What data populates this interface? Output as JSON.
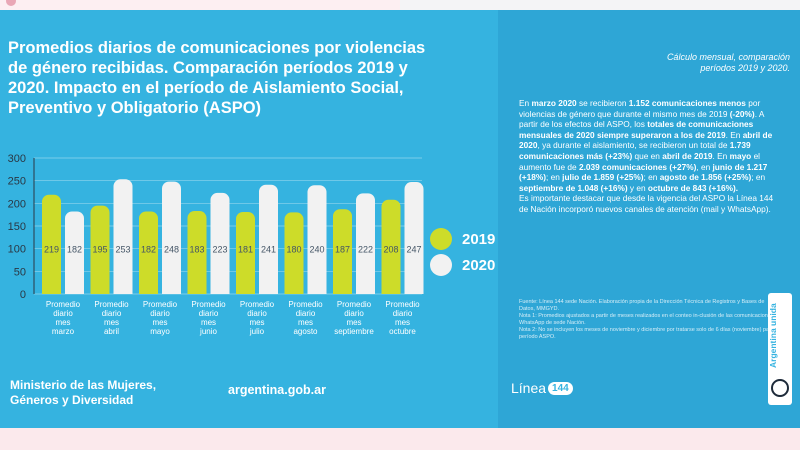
{
  "colors": {
    "background": "#35b3e0",
    "series_2019": "#cddc29",
    "series_2020": "#f2f2f2",
    "text": "#ffffff",
    "axis": "#2a3744"
  },
  "title": "Promedios diarios de comunicaciones por violencias de género recibidas. Comparación períodos 2019 y 2020. Impacto en el período de Aislamiento Social, Preventivo y Obligatorio (ASPO)",
  "calc_note": "Cálculo mensual, comparación períodos 2019 y 2020.",
  "summary": {
    "p1": [
      {
        "t": "En ",
        "b": false
      },
      {
        "t": "marzo 2020",
        "b": true
      },
      {
        "t": " se recibieron ",
        "b": false
      },
      {
        "t": "1.152 comunicaciones menos",
        "b": true
      },
      {
        "t": " por violencias de género que durante el mismo mes de 2019 ",
        "b": false
      },
      {
        "t": "(-20%)",
        "b": true
      },
      {
        "t": ". A partir de los efectos del ASPO, los ",
        "b": false
      },
      {
        "t": "totales de comunicaciones mensuales de 2020 siempre superaron a los de 2019",
        "b": true
      },
      {
        "t": ". En ",
        "b": false
      },
      {
        "t": "abril de 2020",
        "b": true
      },
      {
        "t": ", ya durante el aislamiento, se recibieron un total de ",
        "b": false
      },
      {
        "t": "1.739 comunicaciones más (+23%)",
        "b": true
      },
      {
        "t": " que en ",
        "b": false
      },
      {
        "t": "abril de 2019",
        "b": true
      },
      {
        "t": ". En ",
        "b": false
      },
      {
        "t": "mayo",
        "b": true
      },
      {
        "t": " el aumento fue de ",
        "b": false
      },
      {
        "t": "2.039 comunicaciones (+27%)",
        "b": true
      },
      {
        "t": ", en ",
        "b": false
      },
      {
        "t": "junio de 1.217 (+18%)",
        "b": true
      },
      {
        "t": "; en ",
        "b": false
      },
      {
        "t": "julio de 1.859 (+25%)",
        "b": true
      },
      {
        "t": "; en ",
        "b": false
      },
      {
        "t": "agosto de 1.856 (+25%)",
        "b": true
      },
      {
        "t": "; en ",
        "b": false
      },
      {
        "t": "septiembre de 1.048 (+16%)",
        "b": true
      },
      {
        "t": " y en ",
        "b": false
      },
      {
        "t": "octubre de 843 (+16%).",
        "b": true
      }
    ],
    "p2": "Es importante destacar que desde la vigencia del ASPO la Línea 144 de Nación incorporó nuevos canales de atención (mail y WhatsApp)."
  },
  "footnotes": [
    "Fuente: Línea 144 sede Nación. Elaboración propia de la Dirección Técnica de Registros y Bases de Datos, MMGYD.",
    "Nota 1: Promedios ajustados a partir de meses realizados en el conteo in-clusión de las comunicaciones WhatsApp de sede Nación.",
    "Nota 2: No se incluyen los meses de noviembre y diciembre por tratarse solo de 6 días (noviembre) para período ASPO."
  ],
  "legend": [
    {
      "label": "2019",
      "key": "series_2019"
    },
    {
      "label": "2020",
      "key": "series_2020"
    }
  ],
  "footer": {
    "ministry": [
      "Ministerio de las Mujeres,",
      "Géneros y Diversidad"
    ],
    "site": "argentina.gob.ar",
    "linea_text": "Línea",
    "linea_badge": "144"
  },
  "logo": {
    "text": "Argentina unida"
  },
  "chart_data": {
    "type": "bar",
    "categories": [
      [
        "Promedio",
        "diario",
        "mes",
        "marzo"
      ],
      [
        "Promedio",
        "diario",
        "mes",
        "abril"
      ],
      [
        "Promedio",
        "diario",
        "mes",
        "mayo"
      ],
      [
        "Promedio",
        "diario",
        "mes",
        "junio"
      ],
      [
        "Promedio",
        "diario",
        "mes",
        "julio"
      ],
      [
        "Promedio",
        "diario",
        "mes",
        "agosto"
      ],
      [
        "Promedio",
        "diario",
        "mes",
        "septiembre"
      ],
      [
        "Promedio",
        "diario",
        "mes",
        "octubre"
      ]
    ],
    "series": [
      {
        "name": "2019",
        "values": [
          219,
          195,
          182,
          183,
          181,
          180,
          187,
          208
        ]
      },
      {
        "name": "2020",
        "values": [
          182,
          253,
          248,
          223,
          241,
          240,
          222,
          247
        ]
      }
    ],
    "yticks": [
      0,
      50,
      100,
      150,
      200,
      250,
      300
    ],
    "ylim": [
      0,
      300
    ],
    "grid": true,
    "legend_position": "right"
  }
}
